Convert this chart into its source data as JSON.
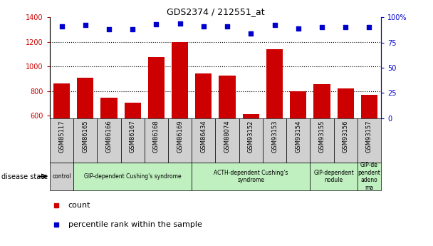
{
  "title": "GDS2374 / 212551_at",
  "samples": [
    "GSM85117",
    "GSM86165",
    "GSM86166",
    "GSM86167",
    "GSM86168",
    "GSM86169",
    "GSM86434",
    "GSM88074",
    "GSM93152",
    "GSM93153",
    "GSM93154",
    "GSM93155",
    "GSM93156",
    "GSM93157"
  ],
  "counts": [
    860,
    910,
    748,
    708,
    1075,
    1200,
    943,
    928,
    614,
    1138,
    800,
    858,
    822,
    770
  ],
  "percentiles": [
    91,
    92,
    88,
    88,
    93,
    94,
    91,
    91,
    84,
    92,
    89,
    90,
    90,
    90
  ],
  "ylim_left": [
    580,
    1400
  ],
  "ylim_right": [
    0,
    100
  ],
  "yticks_left": [
    600,
    800,
    1000,
    1200,
    1400
  ],
  "yticks_right": [
    0,
    25,
    50,
    75,
    100
  ],
  "bar_color": "#cc0000",
  "dot_color": "#0000cc",
  "group_info": [
    {
      "start": 0,
      "end": 0,
      "label": "control",
      "color": "#d0d0d0"
    },
    {
      "start": 1,
      "end": 5,
      "label": "GIP-dependent Cushing's syndrome",
      "color": "#c0f0c0"
    },
    {
      "start": 6,
      "end": 10,
      "label": "ACTH-dependent Cushing's\nsyndrome",
      "color": "#c0f0c0"
    },
    {
      "start": 11,
      "end": 12,
      "label": "GIP-dependent\nnodule",
      "color": "#c0f0c0"
    },
    {
      "start": 13,
      "end": 13,
      "label": "GIP-de\npendent\nadeno\nma",
      "color": "#c0f0c0"
    }
  ],
  "legend_count_label": "count",
  "legend_percentile_label": "percentile rank within the sample",
  "dotted_line_values": [
    800,
    1000,
    1200
  ]
}
